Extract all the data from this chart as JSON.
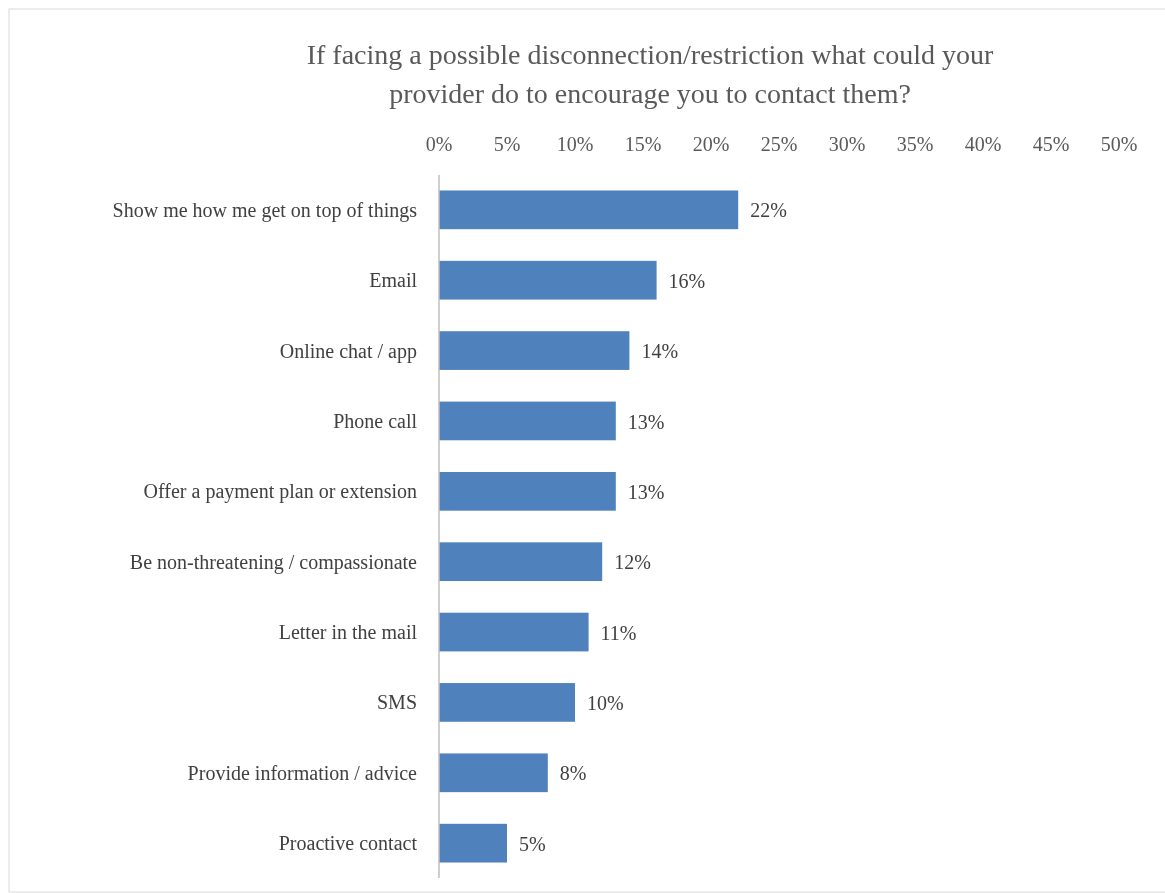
{
  "chart_data": {
    "type": "bar",
    "orientation": "horizontal",
    "title": "If facing a possible disconnection/restriction what could your provider do to encourage you to contact them?",
    "categories": [
      "Show me how me get on top of things",
      "Email",
      "Online chat / app",
      "Phone call",
      "Offer a payment plan or extension",
      "Be non-threatening / compassionate",
      "Letter in the mail",
      "SMS",
      "Provide information / advice",
      "Proactive contact"
    ],
    "values": [
      22,
      16,
      14,
      13,
      13,
      12,
      11,
      10,
      8,
      5
    ],
    "value_labels": [
      "22%",
      "16%",
      "14%",
      "13%",
      "13%",
      "12%",
      "11%",
      "10%",
      "8%",
      "5%"
    ],
    "color": "#4f81bd",
    "grid": false,
    "xlim": [
      0,
      50
    ],
    "xticks": [
      {
        "value": 0,
        "label": "0%"
      },
      {
        "value": 5,
        "label": "5%"
      },
      {
        "value": 10,
        "label": "10%"
      },
      {
        "value": 15,
        "label": "15%"
      },
      {
        "value": 20,
        "label": "20%"
      },
      {
        "value": 25,
        "label": "25%"
      },
      {
        "value": 30,
        "label": "30%"
      },
      {
        "value": 35,
        "label": "35%"
      },
      {
        "value": 40,
        "label": "40%"
      },
      {
        "value": 45,
        "label": "45%"
      },
      {
        "value": 50,
        "label": "50%"
      }
    ]
  }
}
